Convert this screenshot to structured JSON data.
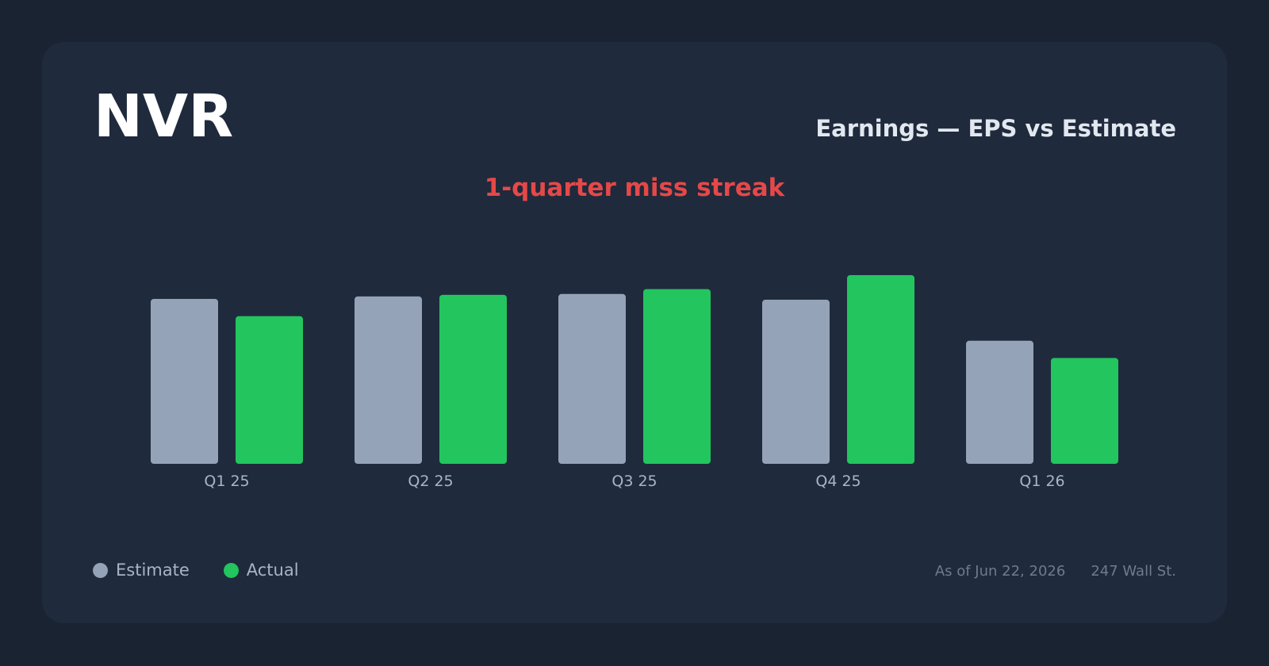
{
  "header": {
    "ticker": "NVR",
    "title": "Earnings — EPS vs Estimate"
  },
  "annotation": {
    "streak": "1-quarter miss streak",
    "color": "#e54848"
  },
  "legend": [
    {
      "label": "Estimate",
      "color": "#94a3b8"
    },
    {
      "label": "Actual",
      "color": "#22c55e"
    }
  ],
  "footer": {
    "as_of": "As of Jun 22, 2026",
    "source": "247 Wall St."
  },
  "chart_data": {
    "type": "bar",
    "categories": [
      "Q1 25",
      "Q2 25",
      "Q3 25",
      "Q4 25",
      "Q1 26"
    ],
    "series": [
      {
        "name": "Estimate",
        "color": "#94a3b8",
        "values": [
          100.5,
          102.0,
          103.5,
          100.0,
          75.0
        ]
      },
      {
        "name": "Actual",
        "color": "#22c55e",
        "values": [
          90.0,
          103.0,
          106.5,
          115.0,
          64.5
        ]
      }
    ],
    "ylim": [
      0,
      115
    ],
    "grid": false,
    "legend_position": "bottom-left"
  }
}
